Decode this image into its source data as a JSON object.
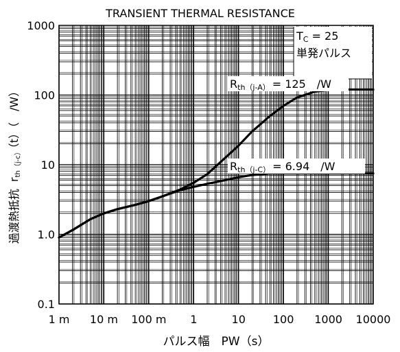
{
  "chart_data": {
    "type": "line",
    "title": "TRANSIENT THERMAL RESISTANCE",
    "xlabel": "パルス幅　PW（s）",
    "ylabel": {
      "prefix": "過渡熱抵抗",
      "symbol": "r",
      "sub": "th（j-c）",
      "suffix": "（t）（　/W）"
    },
    "x_scale": "log",
    "y_scale": "log",
    "xlim": [
      0.001,
      10000
    ],
    "ylim": [
      0.1,
      1000
    ],
    "grid": true,
    "x_tick_values": [
      0.001,
      0.01,
      0.1,
      1,
      10,
      100,
      1000,
      10000
    ],
    "x_tick_labels": [
      "1 m",
      "10 m",
      "100 m",
      "1",
      "10",
      "100",
      "1000",
      "10000"
    ],
    "y_tick_values": [
      0.1,
      1,
      10,
      100,
      1000
    ],
    "y_tick_labels": [
      "0.1",
      "1.0",
      "10",
      "100",
      "1000"
    ],
    "conditions": {
      "line1_symbol": "T",
      "line1_sub": "C",
      "line1_value": " = 25",
      "line2": "単発パルス"
    },
    "series": [
      {
        "name": "Rth(j-A) = 125 /W",
        "label_symbol": "R",
        "label_sub": "th（j-A）",
        "label_value": "= 125　/W",
        "x": [
          0.001,
          0.002,
          0.005,
          0.01,
          0.02,
          0.05,
          0.1,
          0.2,
          0.5,
          1,
          2,
          5,
          10,
          20,
          50,
          100,
          200,
          500,
          1000,
          2000,
          10000
        ],
        "y": [
          0.9,
          1.15,
          1.65,
          2.0,
          2.3,
          2.65,
          3.0,
          3.5,
          4.4,
          5.5,
          7.3,
          12.5,
          18.8,
          30,
          50,
          70,
          92,
          112,
          118,
          120,
          120
        ]
      },
      {
        "name": "Rth(j-C) = 6.94 /W",
        "label_symbol": "R",
        "label_sub": "th（j-C）",
        "label_value": "= 6.94　/W",
        "x": [
          0.001,
          0.002,
          0.005,
          0.01,
          0.02,
          0.05,
          0.1,
          0.2,
          0.5,
          1,
          2,
          5,
          10,
          20,
          50,
          100,
          1000,
          10000
        ],
        "y": [
          0.9,
          1.15,
          1.65,
          2.0,
          2.3,
          2.65,
          3.0,
          3.5,
          4.3,
          4.8,
          5.3,
          6.0,
          6.6,
          7.1,
          7.5,
          7.5,
          7.5,
          7.5
        ]
      }
    ]
  }
}
